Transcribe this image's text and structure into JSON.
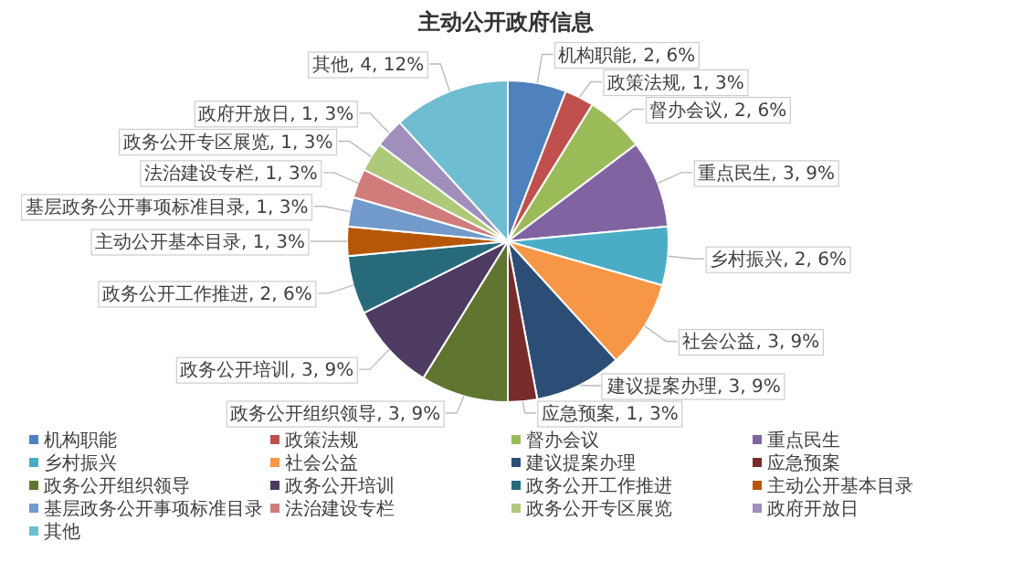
{
  "chart_data": {
    "type": "pie",
    "title": "主动公开政府信息",
    "categories": [
      "机构职能",
      "政策法规",
      "督办会议",
      "重点民生",
      "乡村振兴",
      "社会公益",
      "建议提案办理",
      "应急预案",
      "政务公开组织领导",
      "政务公开培训",
      "政务公开工作推进",
      "主动公开基本目录",
      "基层政务公开事项标准目录",
      "法治建设专栏",
      "政务公开专区展览",
      "政府开放日",
      "其他"
    ],
    "values": [
      2,
      1,
      2,
      3,
      2,
      3,
      3,
      1,
      3,
      3,
      2,
      1,
      1,
      1,
      1,
      1,
      4
    ],
    "value_labels": [
      "机构职能, 2, 6%",
      "政策法规, 1, 3%",
      "督办会议, 2, 6%",
      "重点民生, 3, 9%",
      "乡村振兴, 2, 6%",
      "社会公益, 3, 9%",
      "建议提案办理, 3, 9%",
      "应急预案, 1, 3%",
      "政务公开组织领导, 3, 9%",
      "政务公开培训, 3, 9%",
      "政务公开工作推进, 2, 6%",
      "主动公开基本目录, 1, 3%",
      "基层政务公开事项标准目录, 1, 3%",
      "法治建设专栏, 1, 3%",
      "政务公开专区展览, 1, 3%",
      "政府开放日, 1, 3%",
      "其他, 4, 12%"
    ],
    "colors": [
      "#4f81bd",
      "#c0504d",
      "#9bbb59",
      "#8064a2",
      "#4bacc6",
      "#f79646",
      "#2c4d75",
      "#772c2a",
      "#5f7530",
      "#4d3b62",
      "#276a7c",
      "#b65708",
      "#729aca",
      "#d07c7a",
      "#afc97a",
      "#a08fbc",
      "#6fbdd1"
    ],
    "legend": "bottom"
  }
}
